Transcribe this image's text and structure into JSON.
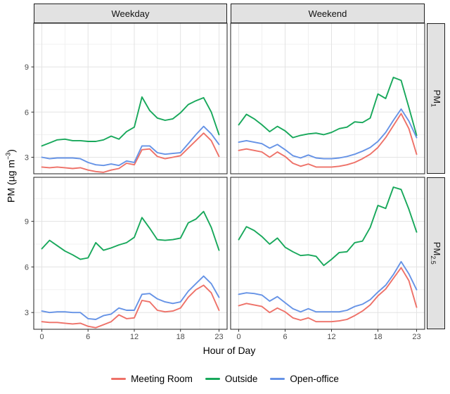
{
  "chart_data": {
    "type": "line",
    "title": "",
    "x_label": "Hour of Day",
    "y_label": "PM (µg m⁻³)",
    "x": [
      0,
      1,
      2,
      3,
      4,
      5,
      6,
      7,
      8,
      9,
      10,
      11,
      12,
      13,
      14,
      15,
      16,
      17,
      18,
      19,
      20,
      21,
      22,
      23
    ],
    "x_ticks": [
      0,
      6,
      12,
      18,
      23
    ],
    "x_minor_ticks": [
      3,
      9,
      15,
      20.5
    ],
    "y_ticks": [
      3,
      6,
      9
    ],
    "y_minor_ticks": [
      4.5,
      7.5,
      10.5
    ],
    "xlim": [
      -1.05,
      24.05
    ],
    "ylim": [
      1.9,
      11.9
    ],
    "grid": true,
    "legend_position": "bottom",
    "facet_columns": [
      "Weekday",
      "Weekend"
    ],
    "facet_rows": [
      "PM1",
      "PM2.5"
    ],
    "series": [
      {
        "name": "Meeting Room",
        "color": "#EE7168"
      },
      {
        "name": "Outside",
        "color": "#18A85B"
      },
      {
        "name": "Open-office",
        "color": "#6693E6"
      }
    ],
    "panels": [
      {
        "facet_column": "Weekday",
        "facet_row": "PM1",
        "values": {
          "Meeting Room": [
            2.35,
            2.3,
            2.35,
            2.3,
            2.25,
            2.3,
            2.15,
            2.05,
            2.0,
            2.15,
            2.25,
            2.6,
            2.5,
            3.5,
            3.55,
            3.05,
            2.9,
            3.0,
            3.1,
            3.6,
            4.1,
            4.6,
            4.1,
            3.05
          ],
          "Outside": [
            3.75,
            3.95,
            4.15,
            4.2,
            4.1,
            4.1,
            4.05,
            4.05,
            4.15,
            4.4,
            4.2,
            4.7,
            5.0,
            7.0,
            6.1,
            5.6,
            5.45,
            5.55,
            5.95,
            6.5,
            6.75,
            6.95,
            6.0,
            4.5
          ],
          "Open-office": [
            3.0,
            2.9,
            2.95,
            2.95,
            2.95,
            2.9,
            2.65,
            2.5,
            2.45,
            2.55,
            2.45,
            2.75,
            2.65,
            3.75,
            3.75,
            3.3,
            3.2,
            3.25,
            3.3,
            3.9,
            4.5,
            5.05,
            4.55,
            3.85
          ]
        }
      },
      {
        "facet_column": "Weekend",
        "facet_row": "PM1",
        "values": {
          "Meeting Room": [
            3.45,
            3.55,
            3.45,
            3.35,
            3.0,
            3.35,
            3.05,
            2.6,
            2.4,
            2.55,
            2.35,
            2.35,
            2.35,
            2.4,
            2.5,
            2.65,
            2.9,
            3.2,
            3.65,
            4.3,
            5.1,
            5.9,
            4.9,
            3.2
          ],
          "Outside": [
            5.15,
            5.85,
            5.55,
            5.15,
            4.7,
            5.05,
            4.75,
            4.3,
            4.45,
            4.55,
            4.6,
            4.5,
            4.65,
            4.9,
            5.0,
            5.35,
            5.3,
            5.6,
            7.2,
            6.9,
            8.3,
            8.1,
            6.3,
            4.45
          ],
          "Open-office": [
            4.0,
            4.1,
            4.0,
            3.9,
            3.6,
            3.85,
            3.5,
            3.1,
            2.95,
            3.15,
            2.95,
            2.9,
            2.9,
            2.95,
            3.05,
            3.2,
            3.4,
            3.65,
            4.05,
            4.65,
            5.45,
            6.2,
            5.4,
            4.3
          ]
        }
      },
      {
        "facet_column": "Weekday",
        "facet_row": "PM2.5",
        "values": {
          "Meeting Room": [
            2.4,
            2.35,
            2.35,
            2.3,
            2.25,
            2.3,
            2.1,
            2.0,
            2.2,
            2.4,
            2.85,
            2.6,
            2.65,
            3.8,
            3.7,
            3.15,
            3.05,
            3.1,
            3.3,
            4.0,
            4.5,
            4.8,
            4.3,
            3.15
          ],
          "Outside": [
            7.2,
            7.75,
            7.4,
            7.05,
            6.8,
            6.5,
            6.6,
            7.6,
            7.1,
            7.25,
            7.45,
            7.6,
            7.95,
            9.25,
            8.55,
            7.8,
            7.75,
            7.8,
            7.9,
            8.9,
            9.15,
            9.65,
            8.6,
            7.1
          ],
          "Open-office": [
            3.1,
            3.0,
            3.05,
            3.05,
            3.0,
            3.0,
            2.6,
            2.55,
            2.8,
            2.9,
            3.3,
            3.15,
            3.15,
            4.2,
            4.25,
            3.9,
            3.7,
            3.6,
            3.7,
            4.4,
            4.9,
            5.4,
            4.9,
            4.0
          ]
        }
      },
      {
        "facet_column": "Weekend",
        "facet_row": "PM2.5",
        "values": {
          "Meeting Room": [
            3.45,
            3.6,
            3.5,
            3.4,
            3.0,
            3.3,
            3.05,
            2.65,
            2.5,
            2.65,
            2.4,
            2.4,
            2.4,
            2.45,
            2.55,
            2.8,
            3.1,
            3.5,
            4.1,
            4.55,
            5.25,
            5.95,
            5.1,
            3.35
          ],
          "Outside": [
            7.8,
            8.65,
            8.4,
            8.0,
            7.5,
            7.9,
            7.3,
            7.0,
            6.75,
            6.8,
            6.7,
            6.1,
            6.5,
            6.95,
            7.0,
            7.6,
            7.7,
            8.6,
            10.05,
            9.85,
            11.25,
            11.1,
            9.8,
            8.3
          ],
          "Open-office": [
            4.2,
            4.3,
            4.25,
            4.15,
            3.75,
            4.05,
            3.65,
            3.25,
            3.05,
            3.25,
            3.05,
            3.05,
            3.05,
            3.05,
            3.15,
            3.4,
            3.55,
            3.85,
            4.35,
            4.8,
            5.5,
            6.35,
            5.55,
            4.5
          ]
        }
      }
    ]
  },
  "facets": {
    "col_labels": [
      "Weekday",
      "Weekend"
    ],
    "row_labels": [
      {
        "base": "PM",
        "sub": "1"
      },
      {
        "base": "PM",
        "sub": "2.5"
      }
    ]
  },
  "axes": {
    "x_title": "Hour of Day",
    "y_title_display": {
      "base": "PM (µg m",
      "sup": "−3",
      "suffix": ")"
    }
  },
  "legend": {
    "items": [
      {
        "label": "Meeting Room"
      },
      {
        "label": "Outside"
      },
      {
        "label": "Open-office"
      }
    ]
  },
  "colors": {
    "strip_fill": "#E2E2E2",
    "panel_border": "#1F1F1F",
    "major_grid": "#E3E3E3",
    "minor_grid": "#F0F0F0",
    "tick_label": "#4D4D4D"
  }
}
